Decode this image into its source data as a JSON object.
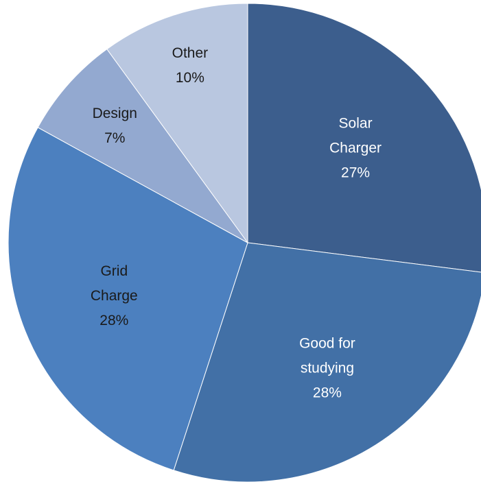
{
  "chart_data": {
    "type": "pie",
    "title": "",
    "start_angle_deg": 0,
    "direction": "clockwise",
    "slices": [
      {
        "label_lines": [
          "Solar",
          "Charger"
        ],
        "percent_label": "27%",
        "value": 27,
        "color": "#3C5E8D",
        "text_color": "#FFFFFF"
      },
      {
        "label_lines": [
          "Good for",
          "studying"
        ],
        "percent_label": "28%",
        "value": 28,
        "color": "#4270A6",
        "text_color": "#FFFFFF"
      },
      {
        "label_lines": [
          "Grid",
          "Charge"
        ],
        "percent_label": "28%",
        "value": 28,
        "color": "#4C80BF",
        "text_color": "#1A1A1A"
      },
      {
        "label_lines": [
          "Design"
        ],
        "percent_label": "7%",
        "value": 7,
        "color": "#93A9D0",
        "text_color": "#1A1A1A"
      },
      {
        "label_lines": [
          "Other"
        ],
        "percent_label": "10%",
        "value": 10,
        "color": "#B9C7E0",
        "text_color": "#1A1A1A"
      }
    ]
  }
}
